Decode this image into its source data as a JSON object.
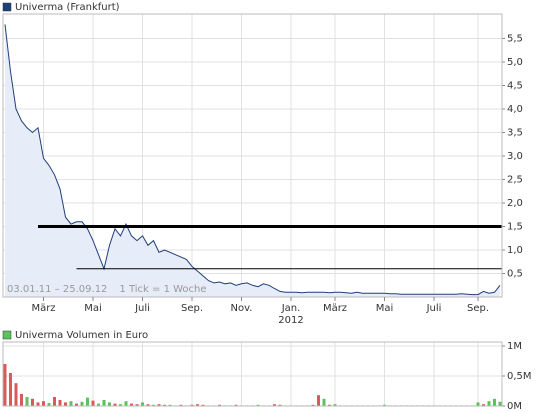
{
  "chart_data": [
    {
      "type": "line",
      "title": "Univerma (Frankfurt)",
      "color": "#1f3f7a",
      "fill_color": "#e6ecf8",
      "categories": [
        null,
        null,
        null,
        null,
        null,
        null,
        null,
        "März",
        null,
        null,
        null,
        null,
        null,
        null,
        null,
        null,
        "Mai",
        null,
        null,
        null,
        null,
        null,
        null,
        null,
        null,
        "Juli",
        null,
        null,
        null,
        null,
        null,
        null,
        null,
        null,
        "Sep.",
        null,
        null,
        null,
        null,
        null,
        null,
        null,
        null,
        "Nov.",
        null,
        null,
        null,
        null,
        null,
        null,
        null,
        null,
        "Jan.",
        null,
        null,
        null,
        null,
        null,
        null,
        null,
        "März",
        null,
        null,
        null,
        null,
        null,
        null,
        null,
        null,
        "Mai",
        null,
        null,
        null,
        null,
        null,
        null,
        null,
        null,
        "Juli",
        null,
        null,
        null,
        null,
        null,
        null,
        null,
        "Sep.",
        null,
        null,
        null,
        null
      ],
      "year_label": "2012",
      "values": [
        5.8,
        4.8,
        4.0,
        3.75,
        3.6,
        3.5,
        3.6,
        2.95,
        2.8,
        2.6,
        2.3,
        1.7,
        1.55,
        1.6,
        1.6,
        1.45,
        1.2,
        0.9,
        0.6,
        1.1,
        1.45,
        1.3,
        1.55,
        1.3,
        1.2,
        1.3,
        1.1,
        1.2,
        0.95,
        1.0,
        0.95,
        0.9,
        0.85,
        0.8,
        0.65,
        0.55,
        0.45,
        0.35,
        0.3,
        0.32,
        0.28,
        0.3,
        0.25,
        0.28,
        0.3,
        0.25,
        0.22,
        0.28,
        0.25,
        0.18,
        0.12,
        0.1,
        0.1,
        0.1,
        0.09,
        0.1,
        0.1,
        0.1,
        0.1,
        0.09,
        0.1,
        0.1,
        0.09,
        0.08,
        0.1,
        0.08,
        0.08,
        0.08,
        0.08,
        0.08,
        0.07,
        0.07,
        0.06,
        0.06,
        0.06,
        0.06,
        0.06,
        0.06,
        0.06,
        0.06,
        0.06,
        0.06,
        0.06,
        0.07,
        0.06,
        0.05,
        0.05,
        0.12,
        0.08,
        0.1,
        0.25
      ],
      "ylim": [
        0,
        6.0
      ],
      "yticks": [
        {
          "value": 0.5,
          "label": "0,5"
        },
        {
          "value": 1.0,
          "label": "1,0"
        },
        {
          "value": 1.5,
          "label": "1,5"
        },
        {
          "value": 2.0,
          "label": "2,0"
        },
        {
          "value": 2.5,
          "label": "2,5"
        },
        {
          "value": 3.0,
          "label": "3,0"
        },
        {
          "value": 3.5,
          "label": "3,5"
        },
        {
          "value": 4.0,
          "label": "4,0"
        },
        {
          "value": 4.5,
          "label": "4,5"
        },
        {
          "value": 5.0,
          "label": "5,0"
        },
        {
          "value": 5.5,
          "label": "5,5"
        }
      ],
      "grid": true,
      "hlines": [
        {
          "value": 1.5,
          "from": 6,
          "width": 3
        },
        {
          "value": 0.6,
          "from": 13,
          "width": 1
        }
      ],
      "range": "03.01.11 – 25.09.12",
      "tick_note": "1 Tick = 1 Woche"
    },
    {
      "type": "bar",
      "title": "Univerma Volumen in Euro",
      "values": [
        700000,
        550000,
        380000,
        200000,
        150000,
        120000,
        60000,
        80000,
        50000,
        150000,
        100000,
        60000,
        80000,
        40000,
        70000,
        140000,
        90000,
        40000,
        100000,
        60000,
        40000,
        30000,
        80000,
        40000,
        30000,
        60000,
        30000,
        20000,
        30000,
        20000,
        20000,
        10000,
        20000,
        10000,
        20000,
        30000,
        20000,
        10000,
        10000,
        20000,
        10000,
        10000,
        20000,
        10000,
        10000,
        10000,
        20000,
        10000,
        10000,
        30000,
        20000,
        10000,
        10000,
        10000,
        10000,
        10000,
        20000,
        180000,
        120000,
        20000,
        30000,
        10000,
        10000,
        10000,
        10000,
        10000,
        10000,
        10000,
        10000,
        20000,
        10000,
        10000,
        10000,
        10000,
        10000,
        10000,
        10000,
        10000,
        10000,
        10000,
        10000,
        10000,
        10000,
        10000,
        10000,
        10000,
        60000,
        30000,
        80000,
        120000,
        70000
      ],
      "colors": [
        "#d65c5c",
        "#d65c5c",
        "#d65c5c",
        "#d65c5c",
        "#5cc25c",
        "#d65c5c",
        "#d65c5c",
        "#d65c5c",
        "#5cc25c",
        "#d65c5c",
        "#d65c5c",
        "#d65c5c",
        "#5cc25c",
        "#d65c5c",
        "#5cc25c",
        "#5cc25c",
        "#d65c5c",
        "#5cc25c",
        "#5cc25c",
        "#5cc25c",
        "#d65c5c",
        "#5cc25c",
        "#5cc25c",
        "#d65c5c",
        "#d65c5c",
        "#5cc25c",
        "#d65c5c",
        "#5cc25c",
        "#d65c5c",
        "#d65c5c",
        "#5cc25c",
        "#d65c5c",
        "#d65c5c",
        "#5cc25c",
        "#d65c5c",
        "#d65c5c",
        "#d65c5c",
        "#d65c5c",
        "#5cc25c",
        "#d65c5c",
        "#5cc25c",
        "#d65c5c",
        "#d65c5c",
        "#5cc25c",
        "#d65c5c",
        "#d65c5c",
        "#5cc25c",
        "#d65c5c",
        "#d65c5c",
        "#d65c5c",
        "#d65c5c",
        "#5cc25c",
        "#d65c5c",
        "#5cc25c",
        "#d65c5c",
        "#5cc25c",
        "#d65c5c",
        "#d65c5c",
        "#5cc25c",
        "#d65c5c",
        "#5cc25c",
        "#d65c5c",
        "#d65c5c",
        "#5cc25c",
        "#d65c5c",
        "#d65c5c",
        "#5cc25c",
        "#d65c5c",
        "#d65c5c",
        "#5cc25c",
        "#d65c5c",
        "#d65c5c",
        "#5cc25c",
        "#d65c5c",
        "#d65c5c",
        "#5cc25c",
        "#d65c5c",
        "#d65c5c",
        "#5cc25c",
        "#d65c5c",
        "#d65c5c",
        "#5cc25c",
        "#d65c5c",
        "#d65c5c",
        "#5cc25c",
        "#d65c5c",
        "#5cc25c",
        "#d65c5c",
        "#5cc25c",
        "#5cc25c",
        "#5cc25c"
      ],
      "legend_color": "#5cc25c",
      "ylim": [
        0,
        1050000
      ],
      "yticks": [
        {
          "value": 0,
          "label": "0M"
        },
        {
          "value": 500000,
          "label": "0,5M"
        },
        {
          "value": 1000000,
          "label": "1M"
        }
      ],
      "grid": true
    }
  ]
}
